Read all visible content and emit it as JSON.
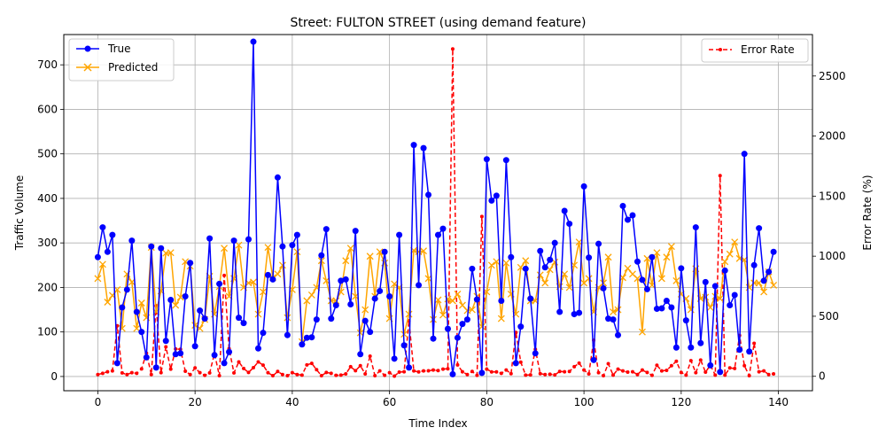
{
  "chart_data": {
    "type": "line",
    "title": "Street: FULTON STREET (using demand feature)",
    "xlabel": "Time Index",
    "ylabel": "Traffic Volume",
    "y2label": "Error Rate (%)",
    "xlim": [
      -7,
      147
    ],
    "ylim": [
      -32,
      768
    ],
    "y2lim": [
      -120,
      2845
    ],
    "x_ticks": [
      0,
      20,
      40,
      60,
      80,
      100,
      120,
      140
    ],
    "y_ticks": [
      0,
      100,
      200,
      300,
      400,
      500,
      600,
      700
    ],
    "y2_ticks": [
      0,
      500,
      1000,
      1500,
      2000,
      2500
    ],
    "grid": true,
    "legend_left_placement": "upper-left",
    "legend_right_placement": "upper-right",
    "series": [
      {
        "name": "True",
        "axis": "left",
        "color": "#0000ff",
        "marker": "circle",
        "line": "solid",
        "values": [
          268,
          335,
          280,
          318,
          30,
          155,
          195,
          305,
          145,
          100,
          43,
          292,
          20,
          288,
          80,
          172,
          50,
          52,
          180,
          255,
          68,
          148,
          130,
          310,
          48,
          208,
          30,
          55,
          305,
          132,
          120,
          308,
          752,
          63,
          98,
          228,
          218,
          447,
          292,
          93,
          295,
          318,
          72,
          87,
          88,
          128,
          272,
          331,
          130,
          160,
          215,
          218,
          162,
          327,
          50,
          125,
          100,
          175,
          192,
          280,
          180,
          40,
          318,
          70,
          20,
          520,
          205,
          513,
          408,
          85,
          318,
          332,
          107,
          5,
          87,
          118,
          128,
          242,
          173,
          8,
          488,
          395,
          406,
          170,
          486,
          268,
          30,
          112,
          242,
          175,
          52,
          282,
          245,
          262,
          300,
          145,
          372,
          343,
          140,
          143,
          427,
          267,
          37,
          298,
          198,
          130,
          128,
          93,
          383,
          352,
          362,
          258,
          217,
          196,
          268,
          152,
          153,
          170,
          155,
          65,
          243,
          126,
          65,
          335,
          75,
          212,
          25,
          203,
          10,
          238,
          160,
          183,
          60,
          500,
          56,
          250,
          333,
          215,
          235,
          280
        ]
      },
      {
        "name": "Predicted",
        "axis": "left",
        "color": "#ffa500",
        "marker": "x",
        "line": "solid",
        "values": [
          220,
          252,
          167,
          182,
          195,
          108,
          230,
          212,
          108,
          165,
          132,
          290,
          145,
          192,
          277,
          278,
          160,
          178,
          258,
          248,
          115,
          108,
          128,
          225,
          140,
          202,
          288,
          180,
          220,
          295,
          200,
          210,
          212,
          140,
          190,
          290,
          222,
          230,
          250,
          132,
          195,
          280,
          78,
          170,
          183,
          200,
          260,
          215,
          170,
          170,
          190,
          260,
          288,
          180,
          98,
          150,
          270,
          180,
          280,
          255,
          130,
          208,
          200,
          95,
          140,
          283,
          280,
          282,
          220,
          128,
          172,
          138,
          174,
          170,
          185,
          160,
          148,
          150,
          180,
          112,
          190,
          250,
          258,
          130,
          255,
          185,
          140,
          245,
          260,
          170,
          170,
          228,
          210,
          240,
          257,
          202,
          230,
          200,
          250,
          302,
          210,
          220,
          145,
          200,
          210,
          268,
          145,
          150,
          222,
          243,
          230,
          220,
          100,
          265,
          205,
          278,
          220,
          268,
          292,
          215,
          185,
          175,
          150,
          242,
          175,
          178,
          155,
          180,
          175,
          258,
          275,
          302,
          265,
          262,
          200,
          210,
          210,
          190,
          235,
          205
        ]
      },
      {
        "name": "Error Rate",
        "axis": "right",
        "color": "#ff0000",
        "marker": "point",
        "line": "dashed",
        "values": [
          15,
          25,
          38,
          45,
          420,
          28,
          15,
          30,
          25,
          62,
          193,
          15,
          587,
          30,
          245,
          60,
          228,
          225,
          42,
          15,
          70,
          30,
          8,
          28,
          190,
          5,
          840,
          230,
          28,
          120,
          65,
          32,
          72,
          120,
          93,
          30,
          5,
          40,
          15,
          5,
          30,
          15,
          10,
          95,
          108,
          55,
          5,
          32,
          25,
          8,
          10,
          20,
          80,
          47,
          88,
          20,
          168,
          5,
          45,
          8,
          30,
          2,
          35,
          38,
          462,
          45,
          37,
          45,
          46,
          52,
          48,
          60,
          63,
          2725,
          95,
          38,
          15,
          40,
          8,
          1330,
          60,
          37,
          37,
          25,
          52,
          22,
          365,
          118,
          10,
          12,
          225,
          22,
          15,
          17,
          12,
          40,
          38,
          40,
          80,
          110,
          52,
          20,
          300,
          30,
          5,
          105,
          10,
          60,
          45,
          35,
          38,
          15,
          52,
          32,
          8,
          92,
          45,
          50,
          88,
          125,
          32,
          10,
          130,
          30,
          135,
          35,
          93,
          10,
          1670,
          10,
          70,
          65,
          340,
          88,
          5,
          275,
          38,
          45,
          15,
          20
        ]
      }
    ]
  }
}
